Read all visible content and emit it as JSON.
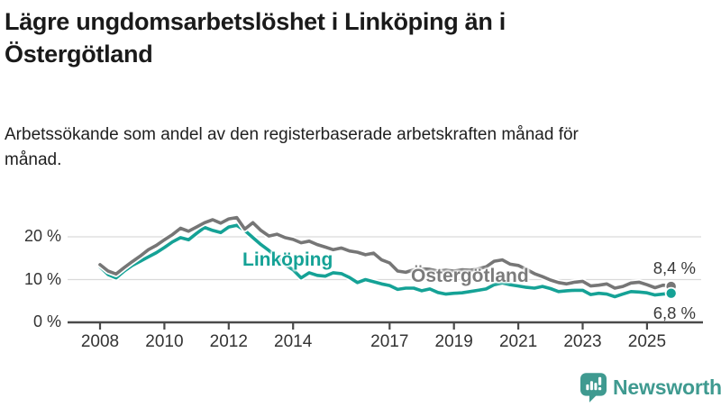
{
  "header": {
    "title": "Lägre ungdomsarbetslöshet i Linköping än i Östergötland",
    "subtitle": "Arbetssökande som andel av den registerbaserade arbetskraften månad för månad."
  },
  "chart_data": {
    "type": "line",
    "title": "Lägre ungdomsarbetslöshet i Linköping än i Östergötland",
    "subtitle": "Arbetssökande som andel av den registerbaserade arbetskraften månad för månad.",
    "unit": "%",
    "grid": "horizontal",
    "legend_position": "inline-labels",
    "ylim": [
      0,
      26
    ],
    "xlim": [
      2007.25,
      2026.1
    ],
    "x_start": 2008.0,
    "x_step": 0.25,
    "x": [
      2008.0,
      2008.25,
      2008.5,
      2008.75,
      2009.0,
      2009.25,
      2009.5,
      2009.75,
      2010.0,
      2010.25,
      2010.5,
      2010.75,
      2011.0,
      2011.25,
      2011.5,
      2011.75,
      2012.0,
      2012.25,
      2012.5,
      2012.75,
      2013.0,
      2013.25,
      2013.5,
      2013.75,
      2014.0,
      2014.25,
      2014.5,
      2014.75,
      2015.0,
      2015.25,
      2015.5,
      2015.75,
      2016.0,
      2016.25,
      2016.5,
      2016.75,
      2017.0,
      2017.25,
      2017.5,
      2017.75,
      2018.0,
      2018.25,
      2018.5,
      2018.75,
      2019.0,
      2019.25,
      2019.5,
      2019.75,
      2020.0,
      2020.25,
      2020.5,
      2020.75,
      2021.0,
      2021.25,
      2021.5,
      2021.75,
      2022.0,
      2022.25,
      2022.5,
      2022.75,
      2023.0,
      2023.25,
      2023.5,
      2023.75,
      2024.0,
      2024.25,
      2024.5,
      2024.75,
      2025.0,
      2025.25,
      2025.5,
      2025.75
    ],
    "yticks": [
      {
        "v": 0,
        "label": "0 %"
      },
      {
        "v": 10,
        "label": "10 %"
      },
      {
        "v": 20,
        "label": "20 %"
      }
    ],
    "xticks": [
      {
        "v": 2008,
        "label": "2008"
      },
      {
        "v": 2010,
        "label": "2010"
      },
      {
        "v": 2012,
        "label": "2012"
      },
      {
        "v": 2014,
        "label": "2014"
      },
      {
        "v": 2017,
        "label": "2017"
      },
      {
        "v": 2019,
        "label": "2019"
      },
      {
        "v": 2021,
        "label": "2021"
      },
      {
        "v": 2023,
        "label": "2023"
      },
      {
        "v": 2025,
        "label": "2025"
      }
    ],
    "series": [
      {
        "name": "Östergötland",
        "color": "#767676",
        "end_value": 8.4,
        "end_label": "8,4 %",
        "values": [
          13.5,
          12.0,
          11.3,
          12.8,
          14.2,
          15.5,
          17.0,
          18.0,
          19.3,
          20.5,
          22.0,
          21.3,
          22.3,
          23.3,
          24.0,
          23.2,
          24.2,
          24.5,
          21.8,
          23.3,
          21.5,
          20.2,
          20.6,
          19.8,
          19.4,
          18.6,
          19.0,
          18.2,
          17.6,
          17.0,
          17.4,
          16.7,
          16.4,
          15.8,
          16.2,
          14.6,
          13.9,
          12.0,
          11.7,
          12.3,
          12.5,
          12.4,
          12.0,
          12.2,
          12.0,
          12.3,
          12.2,
          12.5,
          13.0,
          14.3,
          14.6,
          13.6,
          13.3,
          12.4,
          11.4,
          10.7,
          9.9,
          9.3,
          9.0,
          9.4,
          9.6,
          8.5,
          8.7,
          9.0,
          8.0,
          8.4,
          9.2,
          9.4,
          8.8,
          8.1,
          8.7,
          8.4
        ]
      },
      {
        "name": "Linköping",
        "color": "#15a296",
        "end_value": 6.8,
        "end_label": "6,8 %",
        "values": [
          13.0,
          11.2,
          10.4,
          12.0,
          13.3,
          14.3,
          15.3,
          16.3,
          17.5,
          18.8,
          19.8,
          19.3,
          20.8,
          22.2,
          21.5,
          21.0,
          22.3,
          22.7,
          21.5,
          19.8,
          18.2,
          16.8,
          15.2,
          13.5,
          12.3,
          10.4,
          11.6,
          11.0,
          10.8,
          11.6,
          11.4,
          10.5,
          9.3,
          10.0,
          9.5,
          9.0,
          8.6,
          7.7,
          8.0,
          8.0,
          7.4,
          7.8,
          7.0,
          6.6,
          6.8,
          6.9,
          7.2,
          7.5,
          7.8,
          8.8,
          9.2,
          8.8,
          8.5,
          8.2,
          8.0,
          8.4,
          7.9,
          7.2,
          7.4,
          7.5,
          7.5,
          6.5,
          6.8,
          6.6,
          6.0,
          6.6,
          7.2,
          7.1,
          6.9,
          6.4,
          6.6,
          6.8
        ]
      }
    ],
    "inline_labels": {
      "linkoping": "Linköping",
      "ostergotland": "Östergötland"
    },
    "colors": {
      "axis": "#4a4a4a",
      "grid": "#d9d9d9",
      "tick_text": "#333333",
      "end_label_text": "#3a3a3a"
    }
  },
  "branding": {
    "logo_text": "Newsworthy",
    "logo_color": "#3f9a90",
    "icon": "bar-chart-speech-bubble-icon"
  }
}
